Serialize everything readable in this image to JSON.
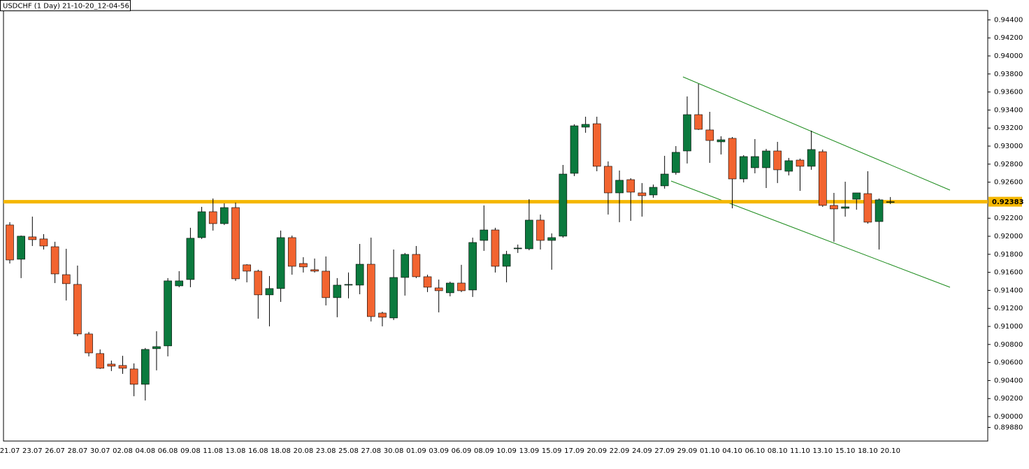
{
  "chart_data": {
    "type": "candlestick",
    "title": "USDCHF (1 Day) 21-10-20_12-04-56",
    "categories": [
      "21.07",
      null,
      "23.07",
      null,
      "26.07",
      null,
      "28.07",
      null,
      "30.07",
      null,
      "02.08",
      null,
      "04.08",
      null,
      "06.08",
      null,
      "09.08",
      null,
      "11.08",
      null,
      "13.08",
      null,
      "16.08",
      null,
      "18.08",
      null,
      "20.08",
      null,
      "23.08",
      null,
      "25.08",
      null,
      "27.08",
      null,
      "30.08",
      null,
      "01.09",
      null,
      "03.09",
      null,
      "06.09",
      null,
      "08.09",
      null,
      "10.09",
      null,
      "13.09",
      null,
      "15.09",
      null,
      "17.09",
      null,
      "20.09",
      null,
      "22.09",
      null,
      "24.09",
      null,
      "27.09",
      null,
      "29.09",
      null,
      "01.10",
      null,
      "04.10",
      null,
      "06.10",
      null,
      "08.10",
      null,
      "11.10",
      null,
      "13.10",
      null,
      "15.10",
      null,
      "18.10",
      null,
      "20.10"
    ],
    "open": [
      0.92125,
      0.91745,
      0.91993,
      0.9197,
      0.91884,
      0.91574,
      0.91466,
      0.90916,
      0.90699,
      0.90582,
      0.90567,
      0.90528,
      0.90358,
      0.90753,
      0.90784,
      0.9145,
      0.9152,
      0.91985,
      0.92272,
      0.9214,
      0.92318,
      0.91683,
      0.91613,
      0.9135,
      0.9142,
      0.91985,
      0.91698,
      0.91629,
      0.91613,
      0.91319,
      0.91458,
      0.91458,
      0.9169,
      0.91148,
      0.91094,
      0.91543,
      0.91799,
      0.91551,
      0.91427,
      0.91373,
      0.91481,
      0.91404,
      0.91954,
      0.9207,
      0.91667,
      0.91861,
      0.91861,
      0.92179,
      0.91954,
      0.92001,
      0.92698,
      0.9321,
      0.93248,
      0.92776,
      0.92481,
      0.92628,
      0.92481,
      0.92458,
      0.92559,
      0.92706,
      0.92946,
      0.93349,
      0.93179,
      0.93047,
      0.93086,
      0.92636,
      0.9276,
      0.9276,
      0.92946,
      0.92721,
      0.92845,
      0.92776,
      0.92938,
      0.92342,
      0.9231,
      0.92411,
      0.92473,
      0.92163,
      0.9238
    ],
    "high": [
      0.92156,
      0.92008,
      0.92218,
      0.92024,
      0.91939,
      0.91861,
      0.91675,
      0.90939,
      0.90745,
      0.90621,
      0.90675,
      0.9059,
      0.90761,
      0.90947,
      0.91536,
      0.91613,
      0.92094,
      0.92326,
      0.92419,
      0.92365,
      0.92373,
      0.9169,
      0.91629,
      0.91559,
      0.92063,
      0.92008,
      0.91768,
      0.91753,
      0.91776,
      0.91536,
      0.91598,
      0.91915,
      0.91985,
      0.91163,
      0.91853,
      0.91815,
      0.91892,
      0.91574,
      0.9152,
      0.91497,
      0.91683,
      0.91985,
      0.92342,
      0.92094,
      0.91838,
      0.91908,
      0.92411,
      0.92241,
      0.92032,
      0.92791,
      0.93241,
      0.93326,
      0.93326,
      0.9283,
      0.92729,
      0.92644,
      0.9259,
      0.92574,
      0.92892,
      0.93,
      0.93551,
      0.9369,
      0.9338,
      0.93109,
      0.93101,
      0.929,
      0.93078,
      0.92969,
      0.93047,
      0.92869,
      0.92861,
      0.93171,
      0.92962,
      0.92481,
      0.92605,
      0.92481,
      0.92721,
      0.92419,
      0.92435
    ],
    "low": [
      0.91698,
      0.91536,
      0.91892,
      0.91853,
      0.91481,
      0.91288,
      0.90892,
      0.90668,
      0.90528,
      0.90505,
      0.90474,
      0.90226,
      0.90179,
      0.90513,
      0.90668,
      0.91435,
      0.91435,
      0.9197,
      0.92063,
      0.92125,
      0.91505,
      0.91489,
      0.91086,
      0.91001,
      0.91272,
      0.91574,
      0.91598,
      0.91598,
      0.91233,
      0.91102,
      0.91311,
      0.91357,
      0.91055,
      0.91001,
      0.91071,
      0.91342,
      0.91536,
      0.91381,
      0.91156,
      0.91334,
      0.91381,
      0.91327,
      0.91838,
      0.91598,
      0.91489,
      0.91815,
      0.91845,
      0.91853,
      0.91629,
      0.91985,
      0.92667,
      0.93148,
      0.92721,
      0.92241,
      0.92156,
      0.92171,
      0.92218,
      0.92427,
      0.92528,
      0.92683,
      0.92807,
      0.93179,
      0.92814,
      0.92907,
      0.9231,
      0.92597,
      0.92698,
      0.92535,
      0.9259,
      0.92675,
      0.92504,
      0.92737,
      0.92326,
      0.91939,
      0.92218,
      0.92295,
      0.9214,
      0.91853,
      0.92357
    ],
    "close": [
      0.91737,
      0.92001,
      0.91962,
      0.91892,
      0.91582,
      0.91474,
      0.90916,
      0.90706,
      0.90536,
      0.90559,
      0.90536,
      0.90358,
      0.90745,
      0.90776,
      0.91505,
      0.91505,
      0.91978,
      0.92272,
      0.9214,
      0.92318,
      0.91528,
      0.91613,
      0.9135,
      0.9142,
      0.91985,
      0.91667,
      0.9166,
      0.91613,
      0.91319,
      0.91458,
      0.91466,
      0.9169,
      0.91109,
      0.91102,
      0.91543,
      0.91799,
      0.91551,
      0.91435,
      0.91396,
      0.91481,
      0.91396,
      0.91931,
      0.9207,
      0.91667,
      0.91799,
      0.91869,
      0.92179,
      0.91954,
      0.91985,
      0.9269,
      0.93225,
      0.93241,
      0.92776,
      0.92481,
      0.92621,
      0.92489,
      0.9245,
      0.92543,
      0.9269,
      0.92931,
      0.93349,
      0.93186,
      0.93062,
      0.9307,
      0.92636,
      0.92884,
      0.92884,
      0.92946,
      0.92737,
      0.92838,
      0.92776,
      0.92962,
      0.92342,
      0.92303,
      0.92326,
      0.92481,
      0.92156,
      0.92404,
      0.92383
    ],
    "up_color": "#0b7a3e",
    "down_color": "#f26430",
    "wick_color": "#000000",
    "current_price": 0.92383,
    "current_price_color": "#f5b700",
    "ylim": [
      0.8988,
      0.94504
    ],
    "yticks": [
      {
        "value": 0.944,
        "label": "0.94400"
      },
      {
        "value": 0.942,
        "label": "0.94200"
      },
      {
        "value": 0.94,
        "label": "0.94000"
      },
      {
        "value": 0.938,
        "label": "0.93800"
      },
      {
        "value": 0.936,
        "label": "0.93600"
      },
      {
        "value": 0.934,
        "label": "0.93400"
      },
      {
        "value": 0.932,
        "label": "0.93200"
      },
      {
        "value": 0.93,
        "label": "0.93000"
      },
      {
        "value": 0.928,
        "label": "0.92800"
      },
      {
        "value": 0.926,
        "label": "0.92600"
      },
      {
        "value": 0.922,
        "label": "0.92200"
      },
      {
        "value": 0.92,
        "label": "0.92000"
      },
      {
        "value": 0.918,
        "label": "0.91800"
      },
      {
        "value": 0.916,
        "label": "0.91600"
      },
      {
        "value": 0.914,
        "label": "0.91400"
      },
      {
        "value": 0.912,
        "label": "0.91200"
      },
      {
        "value": 0.91,
        "label": "0.91000"
      },
      {
        "value": 0.908,
        "label": "0.90800"
      },
      {
        "value": 0.906,
        "label": "0.90600"
      },
      {
        "value": 0.904,
        "label": "0.90400"
      },
      {
        "value": 0.902,
        "label": "0.90200"
      },
      {
        "value": 0.9,
        "label": "0.90000"
      },
      {
        "value": 0.8988,
        "label": "0.89880"
      }
    ],
    "grid": false
  }
}
